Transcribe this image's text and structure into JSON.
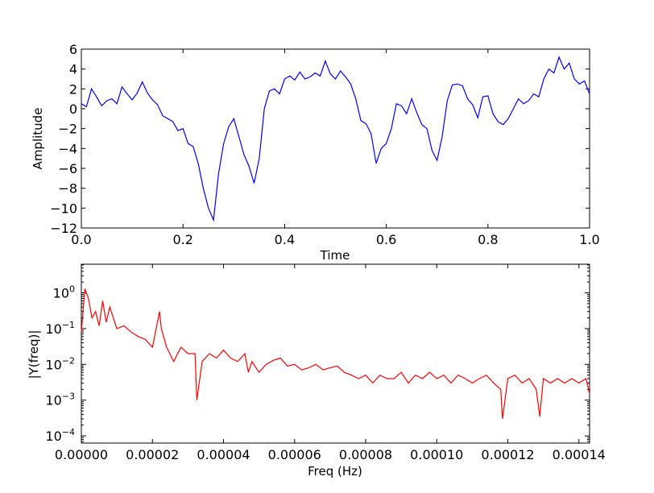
{
  "chart_data": [
    {
      "type": "line",
      "title": "",
      "xlabel": "Time",
      "ylabel": "Amplitude",
      "xlim": [
        0.0,
        1.0
      ],
      "ylim": [
        -12,
        6
      ],
      "xticks": [
        "0.0",
        "0.2",
        "0.4",
        "0.6",
        "0.8",
        "1.0"
      ],
      "yticks": [
        "−12",
        "−10",
        "−8",
        "−6",
        "−4",
        "−2",
        "0",
        "2",
        "4",
        "6"
      ],
      "grid": false,
      "series": [
        {
          "color": "#0000ff",
          "x": [
            0.0,
            0.01,
            0.02,
            0.03,
            0.04,
            0.05,
            0.06,
            0.07,
            0.08,
            0.09,
            0.1,
            0.11,
            0.12,
            0.13,
            0.14,
            0.15,
            0.16,
            0.17,
            0.18,
            0.19,
            0.2,
            0.21,
            0.22,
            0.23,
            0.24,
            0.25,
            0.26,
            0.27,
            0.28,
            0.29,
            0.3,
            0.31,
            0.32,
            0.33,
            0.34,
            0.35,
            0.36,
            0.37,
            0.38,
            0.39,
            0.4,
            0.41,
            0.42,
            0.43,
            0.44,
            0.45,
            0.46,
            0.47,
            0.48,
            0.49,
            0.5,
            0.51,
            0.52,
            0.53,
            0.54,
            0.55,
            0.56,
            0.57,
            0.58,
            0.59,
            0.6,
            0.61,
            0.62,
            0.63,
            0.64,
            0.65,
            0.66,
            0.67,
            0.68,
            0.69,
            0.7,
            0.71,
            0.72,
            0.73,
            0.74,
            0.75,
            0.76,
            0.77,
            0.78,
            0.79,
            0.8,
            0.81,
            0.82,
            0.83,
            0.84,
            0.85,
            0.86,
            0.87,
            0.88,
            0.89,
            0.9,
            0.91,
            0.92,
            0.93,
            0.94,
            0.95,
            0.96,
            0.97,
            0.98,
            0.99,
            1.0
          ],
          "y": [
            0.5,
            0.2,
            2.0,
            1.2,
            0.3,
            0.8,
            1.0,
            0.5,
            2.2,
            1.5,
            0.9,
            1.6,
            2.7,
            1.6,
            0.9,
            0.4,
            -0.7,
            -1.0,
            -1.3,
            -2.2,
            -2.0,
            -3.5,
            -3.8,
            -5.5,
            -8.0,
            -10.0,
            -11.2,
            -6.5,
            -3.5,
            -1.8,
            -1.0,
            -2.8,
            -4.6,
            -5.8,
            -7.5,
            -5.0,
            0.0,
            1.8,
            2.0,
            1.5,
            3.0,
            3.3,
            2.9,
            3.7,
            3.0,
            3.2,
            3.6,
            3.3,
            4.8,
            3.5,
            3.0,
            3.8,
            3.2,
            2.5,
            1.0,
            -1.2,
            -1.5,
            -2.5,
            -5.5,
            -4.0,
            -3.5,
            -2.0,
            0.5,
            0.3,
            -0.5,
            1.0,
            -0.4,
            -1.6,
            -2.0,
            -4.2,
            -5.2,
            -2.8,
            0.8,
            2.4,
            2.5,
            2.3,
            1.0,
            0.4,
            -0.9,
            1.2,
            1.3,
            -0.5,
            -1.3,
            -1.6,
            -1.0,
            0.0,
            1.0,
            0.5,
            0.8,
            1.5,
            1.2,
            3.0,
            4.0,
            3.6,
            5.2,
            4.0,
            4.6,
            3.0,
            2.5,
            2.8,
            1.5
          ]
        }
      ]
    },
    {
      "type": "line",
      "title": "",
      "xlabel": "Freq (Hz)",
      "ylabel": "|Y(freq)|",
      "xlim": [
        0.0,
        0.000143
      ],
      "ylim_log10": [
        -4.2,
        0.8
      ],
      "yscale": "log",
      "xticks": [
        "0.00000",
        "0.00002",
        "0.00004",
        "0.00006",
        "0.00008",
        "0.00010",
        "0.00012",
        "0.00014"
      ],
      "yticks": [
        {
          "mantissa": "10",
          "exp": "0"
        },
        {
          "mantissa": "10",
          "exp": "−1"
        },
        {
          "mantissa": "10",
          "exp": "−2"
        },
        {
          "mantissa": "10",
          "exp": "−3"
        },
        {
          "mantissa": "10",
          "exp": "−4"
        }
      ],
      "grid": false,
      "series": [
        {
          "color": "#ff0000",
          "x": [
            0.0,
            1e-06,
            2e-06,
            3e-06,
            4e-06,
            5e-06,
            6e-06,
            7e-06,
            8e-06,
            9e-06,
            1e-05,
            1.2e-05,
            1.4e-05,
            1.6e-05,
            1.8e-05,
            2e-05,
            2.2e-05,
            2.25e-05,
            2.4e-05,
            2.6e-05,
            2.8e-05,
            3e-05,
            3.2e-05,
            3.25e-05,
            3.4e-05,
            3.6e-05,
            3.8e-05,
            4e-05,
            4.2e-05,
            4.4e-05,
            4.6e-05,
            4.7e-05,
            4.8e-05,
            5e-05,
            5.2e-05,
            5.4e-05,
            5.6e-05,
            5.8e-05,
            6e-05,
            6.2e-05,
            6.4e-05,
            6.6e-05,
            6.8e-05,
            7e-05,
            7.2e-05,
            7.4e-05,
            7.6e-05,
            7.8e-05,
            8e-05,
            8.2e-05,
            8.4e-05,
            8.6e-05,
            8.8e-05,
            9e-05,
            9.2e-05,
            9.4e-05,
            9.6e-05,
            9.8e-05,
            0.0001,
            0.000102,
            0.000104,
            0.000106,
            0.000108,
            0.00011,
            0.000112,
            0.000114,
            0.000116,
            0.000118,
            0.0001185,
            0.00012,
            0.000122,
            0.000124,
            0.000126,
            0.000128,
            0.000129,
            0.00013,
            0.000132,
            0.000134,
            0.000136,
            0.000138,
            0.00014,
            0.000142,
            0.000143
          ],
          "y": [
            0.08,
            1.3,
            0.7,
            0.2,
            0.3,
            0.12,
            0.6,
            0.15,
            0.4,
            0.2,
            0.1,
            0.12,
            0.08,
            0.06,
            0.05,
            0.03,
            0.3,
            0.1,
            0.03,
            0.012,
            0.03,
            0.02,
            0.02,
            0.001,
            0.012,
            0.02,
            0.015,
            0.025,
            0.015,
            0.012,
            0.02,
            0.006,
            0.012,
            0.006,
            0.01,
            0.013,
            0.015,
            0.009,
            0.01,
            0.007,
            0.008,
            0.01,
            0.007,
            0.008,
            0.009,
            0.006,
            0.005,
            0.004,
            0.005,
            0.003,
            0.005,
            0.004,
            0.004,
            0.006,
            0.003,
            0.005,
            0.004,
            0.006,
            0.004,
            0.005,
            0.003,
            0.005,
            0.004,
            0.003,
            0.004,
            0.005,
            0.003,
            0.002,
            0.0003,
            0.004,
            0.005,
            0.003,
            0.004,
            0.002,
            0.00035,
            0.004,
            0.003,
            0.004,
            0.003,
            0.004,
            0.003,
            0.004,
            0.0015
          ]
        }
      ]
    }
  ]
}
